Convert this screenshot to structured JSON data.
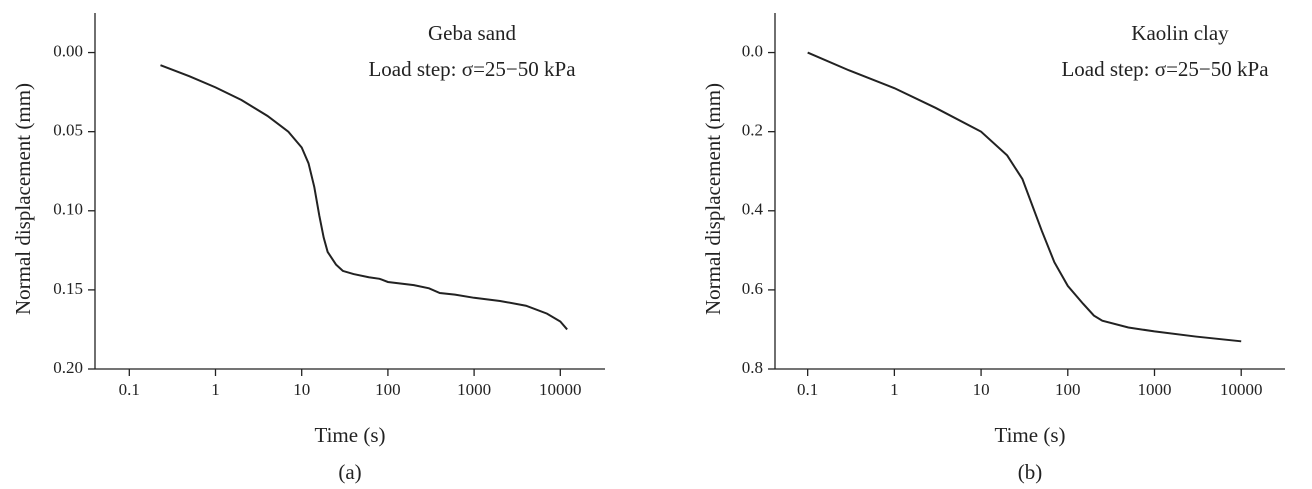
{
  "chart_data": [
    {
      "type": "line",
      "title": "Geba sand",
      "annotation": "Load step:   σ=25−50 kPa",
      "xlabel": "Time (s)",
      "ylabel": "Normal displacement (mm)",
      "caption": "(a)",
      "xscale": "log",
      "xlim": [
        0.04,
        33000
      ],
      "xticks": [
        0.1,
        1,
        10,
        100,
        1000,
        10000
      ],
      "ylim": [
        0.2,
        -0.025
      ],
      "yticks": [
        {
          "value": 0,
          "label": "0.00"
        },
        0.05,
        {
          "value": 0.1,
          "label": "0.10"
        },
        0.15,
        {
          "value": 0.2,
          "label": "0.20"
        }
      ],
      "x": [
        0.23,
        0.5,
        1,
        2,
        4,
        7,
        10,
        12,
        14,
        16,
        18,
        20,
        25,
        30,
        40,
        60,
        80,
        100,
        200,
        300,
        400,
        600,
        1000,
        2000,
        4000,
        7000,
        10000,
        12000
      ],
      "series": [
        {
          "color": "#222222",
          "values": [
            0.008,
            0.015,
            0.022,
            0.03,
            0.04,
            0.05,
            0.06,
            0.07,
            0.085,
            0.103,
            0.117,
            0.126,
            0.134,
            0.138,
            0.14,
            0.142,
            0.143,
            0.145,
            0.147,
            0.149,
            0.152,
            0.153,
            0.155,
            0.157,
            0.16,
            0.165,
            0.17,
            0.175
          ]
        }
      ]
    },
    {
      "type": "line",
      "title": "Kaolin clay",
      "annotation": "Load step:   σ=25−50 kPa",
      "xlabel": "Time (s)",
      "ylabel": "Normal displacement (mm)",
      "caption": "(b)",
      "xscale": "log",
      "xlim": [
        0.042,
        32000
      ],
      "xticks": [
        0.1,
        1,
        10,
        100,
        1000,
        10000
      ],
      "ylim": [
        0.8,
        -0.1
      ],
      "yticks": [
        {
          "value": 0,
          "label": "0.0"
        },
        0.2,
        0.4,
        0.6,
        0.8
      ],
      "x": [
        0.1,
        0.3,
        1,
        3,
        10,
        20,
        30,
        50,
        70,
        100,
        150,
        200,
        250,
        500,
        1000,
        3000,
        10000
      ],
      "series": [
        {
          "color": "#222222",
          "values": [
            0.0,
            0.045,
            0.09,
            0.14,
            0.2,
            0.26,
            0.32,
            0.45,
            0.53,
            0.59,
            0.635,
            0.665,
            0.678,
            0.695,
            0.705,
            0.718,
            0.73
          ]
        }
      ]
    }
  ]
}
